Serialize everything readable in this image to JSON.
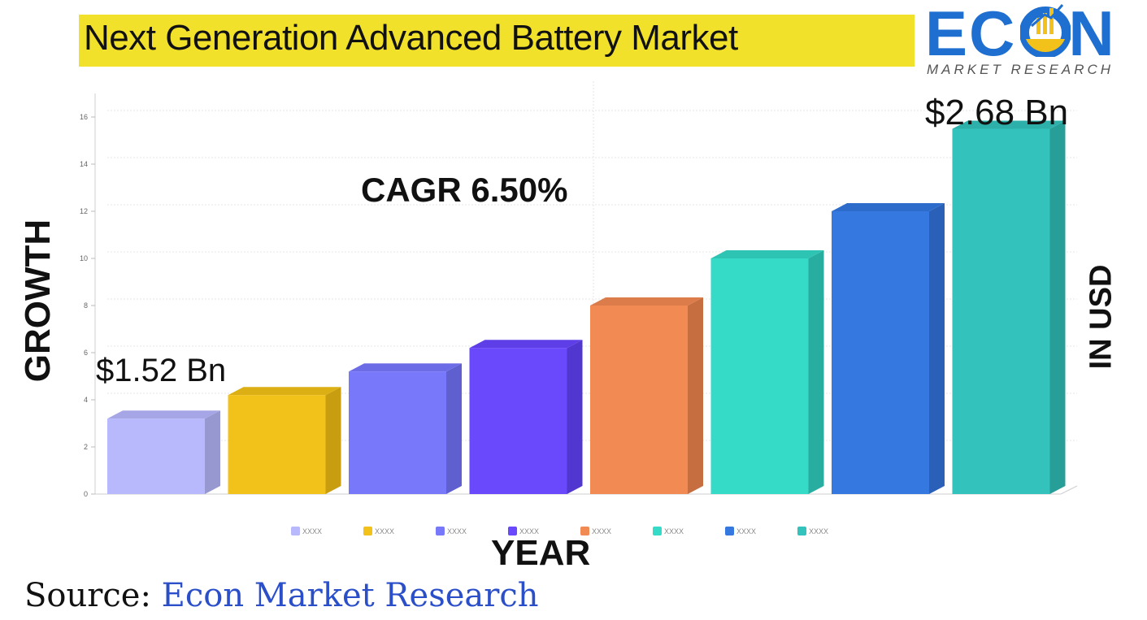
{
  "header": {
    "title": "Next Generation Advanced Battery Market",
    "logo_word_left": "EC",
    "logo_word_right": "N",
    "logo_sub": "MARKET RESEARCH"
  },
  "annotations": {
    "cagr": "CAGR 6.50%",
    "start_value": "$1.52 Bn",
    "end_value": "$2.68 Bn",
    "right_label": "IN USD"
  },
  "source": {
    "prefix": "Source: ",
    "org": "Econ Market Research"
  },
  "colors": {
    "title_bg": "#f2e12a",
    "logo_blue": "#1e6fd0",
    "source_blue": "#2a4fc9"
  },
  "chart_data": {
    "type": "bar",
    "title": "",
    "xlabel": "YEAR",
    "ylabel": "GROWTH",
    "ylim": [
      0,
      17
    ],
    "yticks": [
      0,
      2,
      4,
      6,
      8,
      10,
      12,
      14,
      16
    ],
    "grid": true,
    "legend_position": "bottom",
    "categories": [
      "XXXX",
      "XXXX",
      "XXXX",
      "XXXX",
      "XXXX",
      "XXXX",
      "XXXX",
      "XXXX"
    ],
    "values": [
      3.2,
      4.2,
      5.2,
      6.2,
      8.0,
      10.0,
      12.0,
      15.5
    ],
    "bar_colors": [
      "#b8b8fc",
      "#f2c21a",
      "#7878fa",
      "#6a48fc",
      "#f28a54",
      "#36dbc8",
      "#3478e0",
      "#34c2bc"
    ],
    "side_colors": [
      "#9898d0",
      "#c89e10",
      "#5f5fd0",
      "#5236d0",
      "#c66e40",
      "#28aea0",
      "#2a60b8",
      "#289e98"
    ],
    "top_colors": [
      "#a6a6e6",
      "#dcb014",
      "#6c6ce6",
      "#5e3ee6",
      "#dc7c4a",
      "#2ec4b4",
      "#2e6ccc",
      "#2eb0aa"
    ]
  }
}
